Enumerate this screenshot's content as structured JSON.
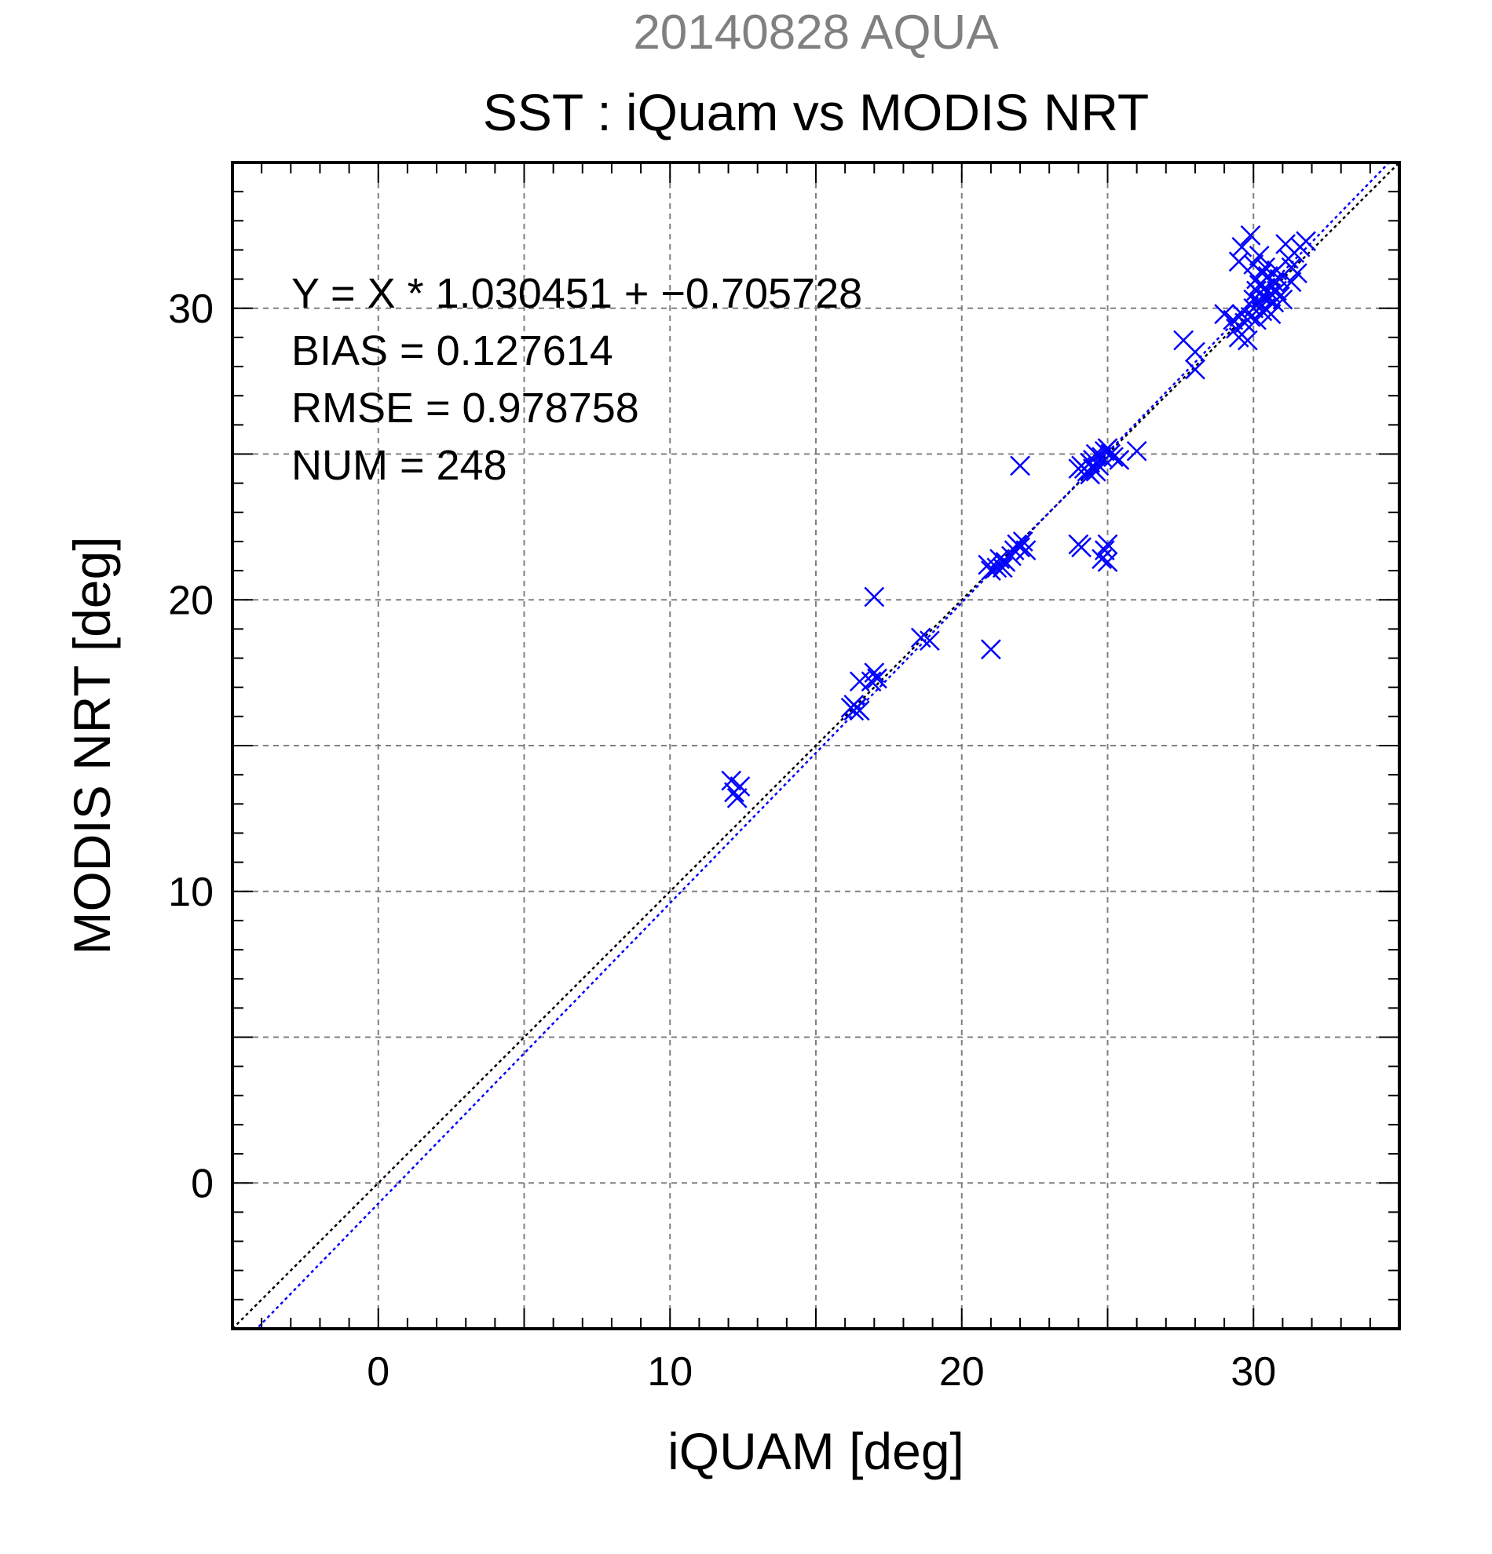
{
  "chart_data": {
    "type": "scatter",
    "supertitle": "20140828 AQUA",
    "title": "SST : iQuam vs MODIS NRT",
    "xlabel": "iQUAM [deg]",
    "ylabel": "MODIS NRT [deg]",
    "xlim": [
      -5,
      35
    ],
    "ylim": [
      -5,
      35
    ],
    "xticks": [
      0,
      10,
      20,
      30
    ],
    "yticks": [
      0,
      10,
      20,
      30
    ],
    "xtick_labels": [
      "0",
      "10",
      "20",
      "30"
    ],
    "ytick_labels": [
      "0",
      "10",
      "20",
      "30"
    ],
    "grid": true,
    "annotations": [
      "Y = X * 1.030451 + −0.705728",
      "BIAS = 0.127614",
      "RMSE = 0.978758",
      "NUM = 248"
    ],
    "fit": {
      "slope": 1.030451,
      "intercept": -0.705728
    },
    "colors": {
      "points": "#0000ff",
      "fit_line": "#0000ff",
      "identity_line": "#000000",
      "supertitle": "#808080",
      "grid": "#808080"
    },
    "points": [
      [
        12.1,
        13.8
      ],
      [
        12.2,
        13.4
      ],
      [
        12.3,
        13.2
      ],
      [
        12.4,
        13.6
      ],
      [
        16.2,
        16.3
      ],
      [
        16.3,
        16.2
      ],
      [
        16.4,
        16.3
      ],
      [
        16.5,
        16.2
      ],
      [
        16.3,
        16.4
      ],
      [
        16.5,
        17.2
      ],
      [
        16.9,
        17.2
      ],
      [
        17.0,
        17.5
      ],
      [
        17.1,
        17.3
      ],
      [
        17.0,
        20.1
      ],
      [
        18.6,
        18.7
      ],
      [
        18.9,
        18.6
      ],
      [
        21.0,
        18.3
      ],
      [
        20.9,
        21.2
      ],
      [
        21.0,
        21.0
      ],
      [
        21.2,
        21.1
      ],
      [
        21.3,
        21.4
      ],
      [
        21.4,
        21.1
      ],
      [
        21.5,
        21.3
      ],
      [
        21.7,
        21.5
      ],
      [
        21.8,
        21.7
      ],
      [
        21.9,
        21.9
      ],
      [
        22.0,
        21.8
      ],
      [
        22.1,
        22.0
      ],
      [
        22.2,
        21.7
      ],
      [
        22.0,
        24.6
      ],
      [
        24.0,
        21.9
      ],
      [
        24.1,
        21.8
      ],
      [
        24.0,
        24.5
      ],
      [
        24.1,
        24.6
      ],
      [
        24.2,
        24.5
      ],
      [
        24.3,
        24.4
      ],
      [
        24.4,
        24.3
      ],
      [
        24.5,
        24.5
      ],
      [
        24.6,
        24.4
      ],
      [
        24.7,
        24.6
      ],
      [
        24.4,
        24.7
      ],
      [
        24.5,
        24.8
      ],
      [
        24.6,
        25.0
      ],
      [
        24.8,
        24.9
      ],
      [
        24.9,
        25.1
      ],
      [
        25.0,
        25.2
      ],
      [
        25.1,
        25.0
      ],
      [
        25.2,
        24.9
      ],
      [
        25.4,
        24.8
      ],
      [
        24.8,
        21.4
      ],
      [
        24.9,
        21.7
      ],
      [
        25.0,
        21.9
      ],
      [
        25.0,
        21.3
      ],
      [
        26.0,
        25.1
      ],
      [
        27.6,
        28.9
      ],
      [
        28.0,
        28.5
      ],
      [
        28.0,
        27.9
      ],
      [
        29.0,
        29.8
      ],
      [
        29.3,
        29.6
      ],
      [
        29.4,
        29.3
      ],
      [
        29.5,
        29.0
      ],
      [
        29.6,
        29.8
      ],
      [
        29.7,
        29.5
      ],
      [
        29.8,
        28.9
      ],
      [
        29.5,
        31.6
      ],
      [
        29.6,
        32.1
      ],
      [
        29.9,
        32.5
      ],
      [
        30.0,
        30.0
      ],
      [
        30.0,
        30.3
      ],
      [
        30.1,
        30.6
      ],
      [
        30.1,
        31.0
      ],
      [
        30.2,
        30.2
      ],
      [
        30.2,
        30.8
      ],
      [
        30.3,
        30.4
      ],
      [
        30.3,
        31.2
      ],
      [
        30.4,
        30.0
      ],
      [
        30.4,
        30.7
      ],
      [
        30.5,
        30.3
      ],
      [
        30.5,
        31.1
      ],
      [
        30.6,
        30.5
      ],
      [
        30.6,
        29.8
      ],
      [
        30.7,
        30.9
      ],
      [
        30.7,
        30.2
      ],
      [
        30.8,
        30.6
      ],
      [
        30.8,
        31.3
      ],
      [
        30.9,
        30.4
      ],
      [
        30.0,
        31.5
      ],
      [
        30.2,
        31.8
      ],
      [
        30.4,
        31.4
      ],
      [
        29.9,
        29.7
      ],
      [
        30.1,
        29.6
      ],
      [
        30.3,
        29.9
      ],
      [
        30.9,
        31.0
      ],
      [
        31.0,
        30.3
      ],
      [
        31.1,
        32.2
      ],
      [
        31.2,
        31.7
      ],
      [
        31.3,
        31.4
      ],
      [
        31.4,
        31.9
      ],
      [
        31.5,
        31.2
      ],
      [
        31.6,
        32.1
      ],
      [
        31.8,
        32.3
      ],
      [
        31.3,
        30.9
      ]
    ]
  }
}
